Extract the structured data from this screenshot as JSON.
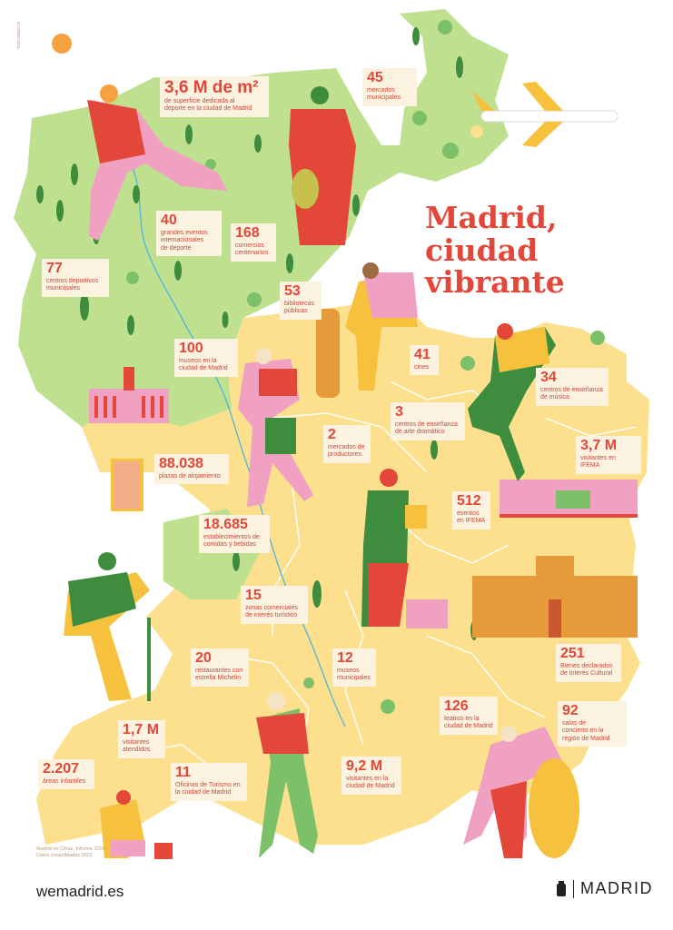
{
  "title": "Madrid,\nciudad\nvibrante",
  "stats": [
    {
      "id": "deporte-superficie",
      "value": "3,6 M de m²",
      "label": "de superficie dedicada al\ndeporte en la ciudad de Madrid"
    },
    {
      "id": "mercados",
      "value": "45",
      "label": "mercados\nmunicipales"
    },
    {
      "id": "eventos-deporte",
      "value": "40",
      "label": "grandes eventos\ninternacionales\nde deporte"
    },
    {
      "id": "comercios",
      "value": "168",
      "label": "comercios\ncentenarios"
    },
    {
      "id": "centros-deportivos",
      "value": "77",
      "label": "centros deportivos\nmunicipales"
    },
    {
      "id": "bibliotecas",
      "value": "53",
      "label": "bibliotecas\npúblicas"
    },
    {
      "id": "cines",
      "value": "41",
      "label": "cines"
    },
    {
      "id": "museos-ciudad",
      "value": "100",
      "label": "museos en la\nciudad de Madrid"
    },
    {
      "id": "musica",
      "value": "34",
      "label": "centros de enseñanza\nde música"
    },
    {
      "id": "arte-dramatico",
      "value": "3",
      "label": "centros de enseñanza\nde arte dramático"
    },
    {
      "id": "productores",
      "value": "2",
      "label": "mercados de\nproductores"
    },
    {
      "id": "ifema-visitantes",
      "value": "3,7 M",
      "label": "visitantes en IFEMA"
    },
    {
      "id": "alojamiento",
      "value": "88.038",
      "label": "plazas de alojamiento"
    },
    {
      "id": "ifema-eventos",
      "value": "512",
      "label": "eventos\nen IFEMA"
    },
    {
      "id": "comidas",
      "value": "18.685",
      "label": "establecimientos de\ncomidas y bebidas"
    },
    {
      "id": "zonas-comerciales",
      "value": "15",
      "label": "zonas comerciales\nde interés turístico"
    },
    {
      "id": "bienes",
      "value": "251",
      "label": "Bienes declarados\nde Interés Cultural"
    },
    {
      "id": "michelin",
      "value": "20",
      "label": "restaurantes con\nestrella Michelin"
    },
    {
      "id": "museos-municipales",
      "value": "12",
      "label": "museos\nmunicipales"
    },
    {
      "id": "teatros",
      "value": "126",
      "label": "teatros en la\nciudad de Madrid"
    },
    {
      "id": "conciertos",
      "value": "92",
      "label": "salas de\nconcierto en la\nregión de Madrid"
    },
    {
      "id": "visitantes-atendidos",
      "value": "1,7 M",
      "label": "visitantes\natendidos"
    },
    {
      "id": "areas-infantiles",
      "value": "2.207",
      "label": "áreas infantiles"
    },
    {
      "id": "turismo",
      "value": "11",
      "label": "Oficinas de Turismo en\nla ciudad de Madrid"
    },
    {
      "id": "visitantes-ciudad",
      "value": "9,2 M",
      "label": "visitantes en la\nciudad de Madrid"
    }
  ],
  "source_note": "Madrid en Cifras. Informe 2024.\nDatos consolidados 2022",
  "side_code": "M-22890-2024",
  "footer": {
    "url": "wemadrid.es",
    "logo_word": "MADRID"
  },
  "colors": {
    "red": "#e2473a",
    "green": "#bfe08f",
    "yellow": "#fce08e",
    "cream": "#fbf2df",
    "pink": "#f0a0c0",
    "darkgreen": "#3e8c3e"
  }
}
